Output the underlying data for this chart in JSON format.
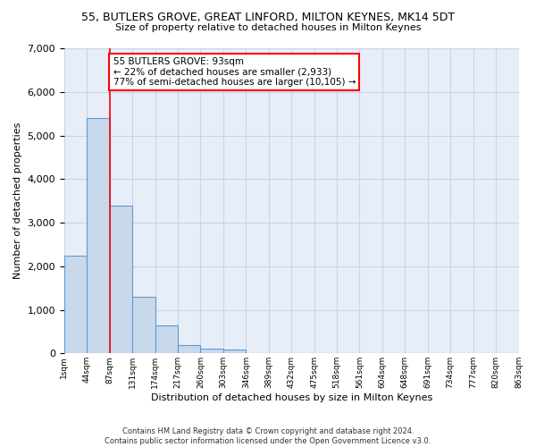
{
  "title1": "55, BUTLERS GROVE, GREAT LINFORD, MILTON KEYNES, MK14 5DT",
  "title2": "Size of property relative to detached houses in Milton Keynes",
  "xlabel": "Distribution of detached houses by size in Milton Keynes",
  "ylabel": "Number of detached properties",
  "footnote": "Contains HM Land Registry data © Crown copyright and database right 2024.\nContains public sector information licensed under the Open Government Licence v3.0.",
  "bar_values": [
    2250,
    5400,
    3400,
    1300,
    650,
    200,
    100,
    80,
    0,
    0,
    0,
    0,
    0,
    0,
    0,
    0,
    0,
    0,
    0,
    0
  ],
  "bar_labels": [
    "1sqm",
    "44sqm",
    "87sqm",
    "131sqm",
    "174sqm",
    "217sqm",
    "260sqm",
    "303sqm",
    "346sqm",
    "389sqm",
    "432sqm",
    "475sqm",
    "518sqm",
    "561sqm",
    "604sqm",
    "648sqm",
    "691sqm",
    "734sqm",
    "777sqm",
    "820sqm",
    "863sqm"
  ],
  "bar_color": "#c9d9ec",
  "bar_edge_color": "#5b9bd5",
  "bar_edge_width": 0.8,
  "annotation_box_text": "55 BUTLERS GROVE: 93sqm\n← 22% of detached houses are smaller (2,933)\n77% of semi-detached houses are larger (10,105) →",
  "annotation_box_color": "white",
  "annotation_box_edge_color": "red",
  "vline_x": 2,
  "vline_color": "red",
  "ylim": [
    0,
    7000
  ],
  "yticks": [
    0,
    1000,
    2000,
    3000,
    4000,
    5000,
    6000,
    7000
  ],
  "grid_color": "#c8d4e8",
  "background_color": "#e8eef8"
}
